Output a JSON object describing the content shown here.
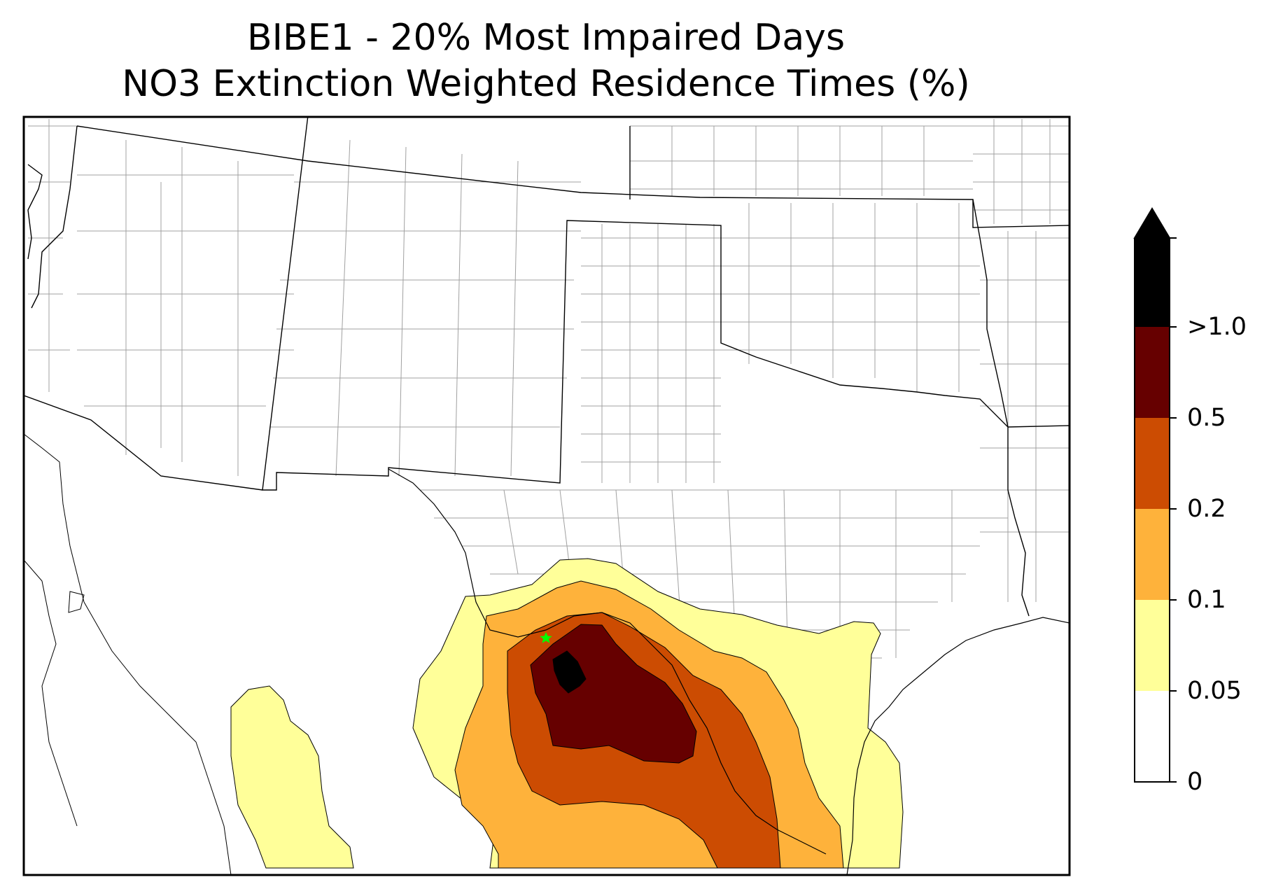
{
  "title_line1": "BIBE1 - 20% Most Impaired Days",
  "title_line2": "NO3 Extinction Weighted Residence Times (%)",
  "colorbar": {
    "labels": [
      "0",
      "0.05",
      "0.1",
      "0.2",
      "0.5",
      ">1.0"
    ],
    "colors": [
      "#ffffff",
      "#ffff99",
      "#feb23b",
      "#cc4c02",
      "#660000",
      "#000000"
    ],
    "extend": "max"
  },
  "site_marker": {
    "name": "BIBE1",
    "color": "#00ff00",
    "shape": "star"
  },
  "map_colors": {
    "state_lines": "#000000",
    "county_lines": "#a0a0a0"
  }
}
